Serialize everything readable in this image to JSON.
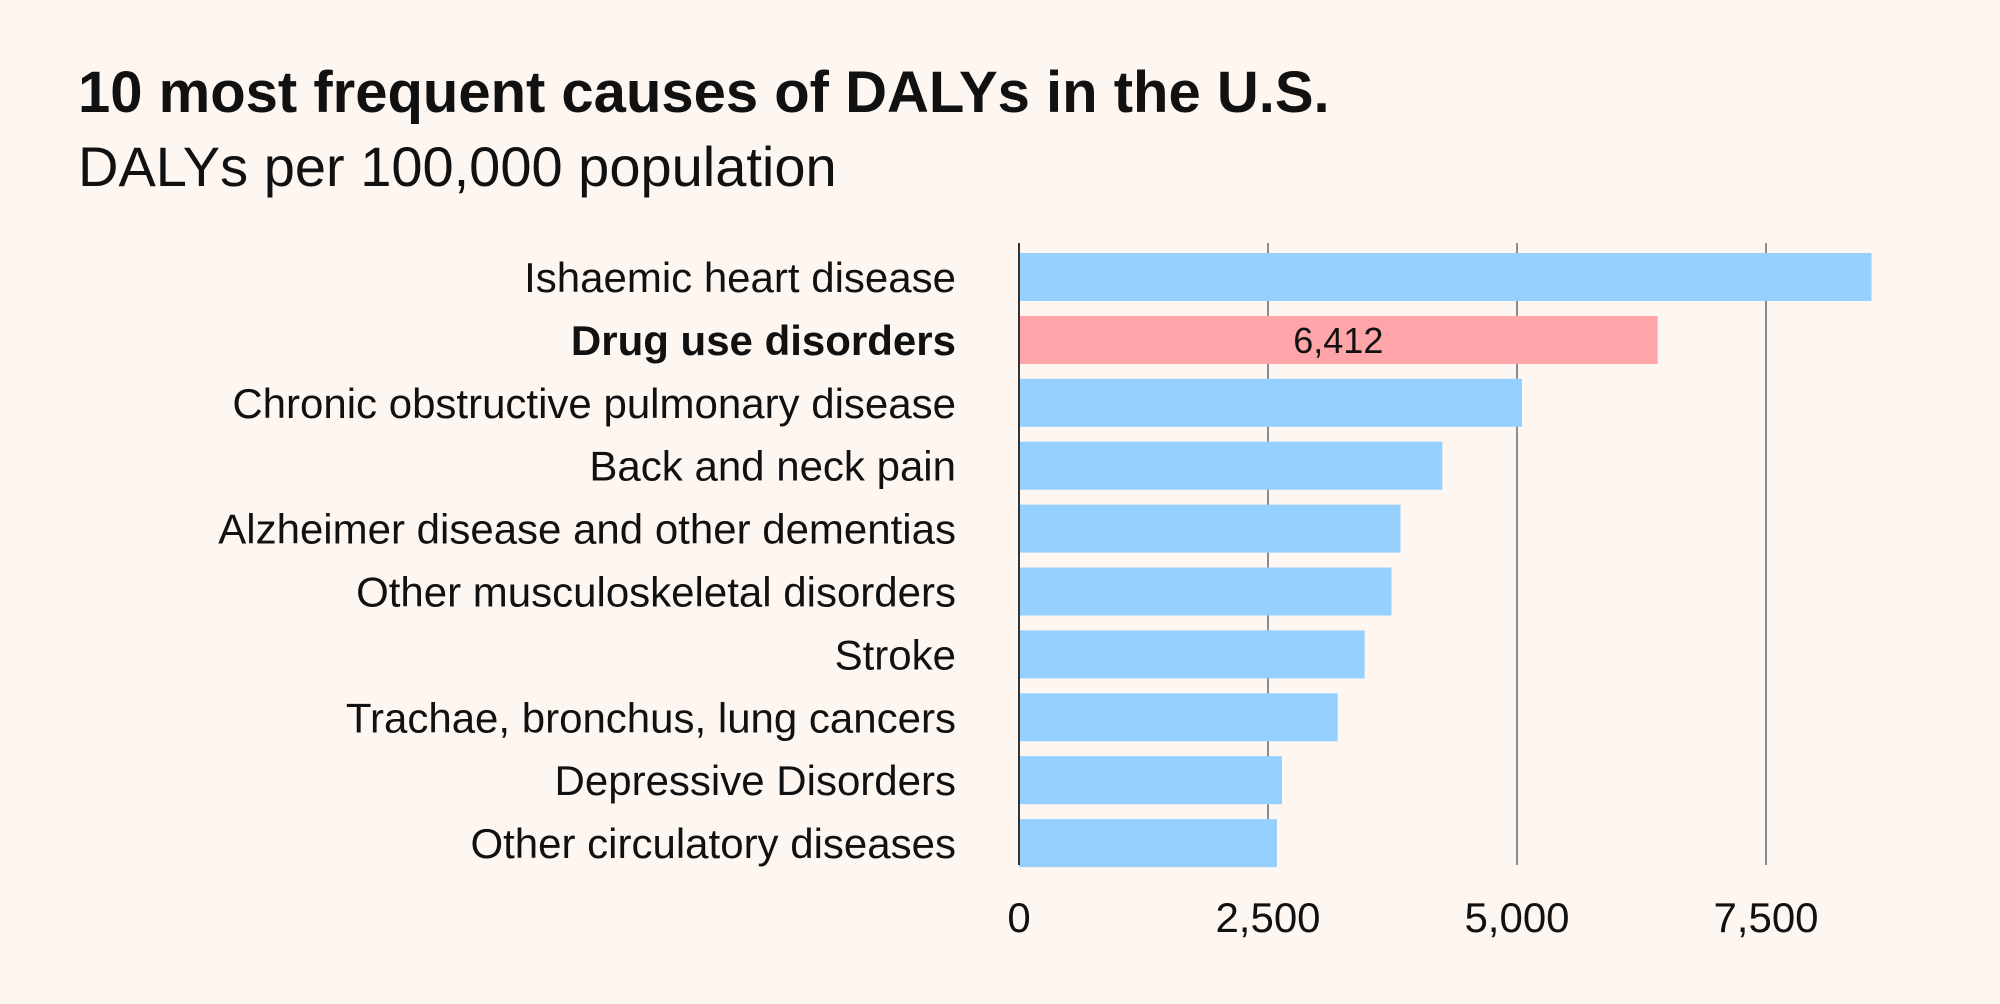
{
  "chart_data": {
    "type": "bar",
    "orientation": "horizontal",
    "title": "10 most frequent causes of DALYs in the U.S.",
    "subtitle": "DALYs per 100,000 population",
    "xlabel": "",
    "ylabel": "",
    "xlim": [
      0,
      9000
    ],
    "categories": [
      "Ishaemic heart disease",
      "Drug use disorders",
      "Chronic obstructive pulmonary disease",
      "Back and neck pain",
      "Alzheimer disease and other dementias",
      "Other musculoskeletal disorders",
      "Stroke",
      "Trachae, bronchus, lung cancers",
      "Depressive Disorders",
      "Other circulatory diseases"
    ],
    "values": [
      8560,
      6412,
      5050,
      4250,
      3830,
      3740,
      3470,
      3200,
      2640,
      2590
    ],
    "highlight_index": 1,
    "data_labels": [
      {
        "index": 1,
        "text": "6,412"
      }
    ],
    "x_ticks": [
      {
        "value": 0,
        "label": "0"
      },
      {
        "value": 2500,
        "label": "2,500"
      },
      {
        "value": 5000,
        "label": "5,000"
      },
      {
        "value": 7500,
        "label": "7,500"
      }
    ],
    "gridlines": true,
    "colors": {
      "bar": "#96d0ff",
      "highlight": "#ffa4a8",
      "grid": "#8c8c8c",
      "axis": "#333333",
      "background": "#fdf6f1"
    }
  }
}
